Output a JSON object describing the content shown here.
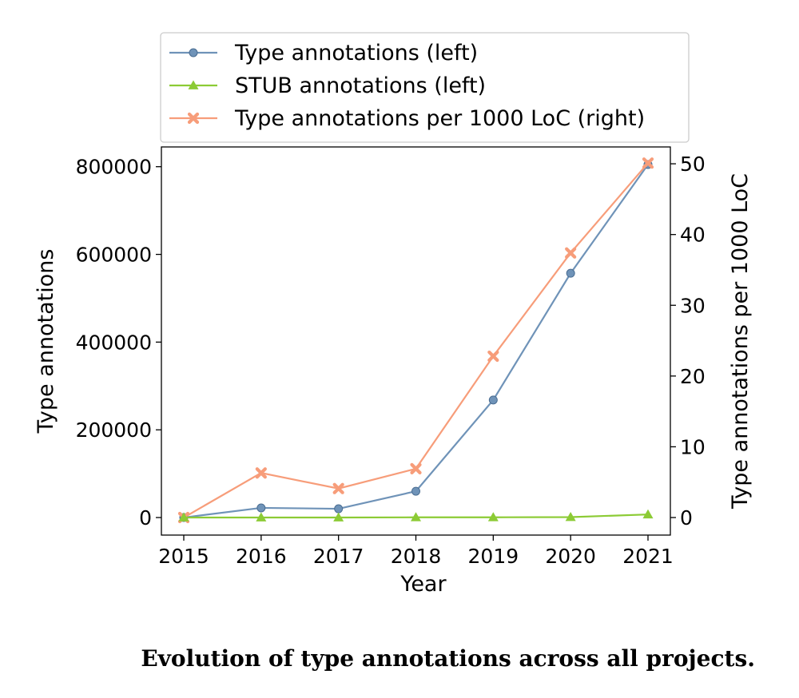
{
  "caption": "Evolution of type annotations across all projects.",
  "chart_data": {
    "type": "line",
    "x": [
      2015,
      2016,
      2017,
      2018,
      2019,
      2020,
      2021
    ],
    "xlabel": "Year",
    "ylabel_left": "Type annotations",
    "ylabel_right": "Type annotations per 1000 LoC",
    "ylim_left": [
      -40000,
      845000
    ],
    "ylim_right": [
      -2.48,
      52.38
    ],
    "yticks_left": [
      0,
      200000,
      400000,
      600000,
      800000
    ],
    "yticks_right": [
      0,
      10,
      20,
      30,
      40,
      50
    ],
    "legend_position": "top",
    "grid": false,
    "series": [
      {
        "name": "Type annotations (left)",
        "axis": "left",
        "marker": "circle",
        "color": "#6f93b8",
        "values": [
          0,
          22000,
          20000,
          60000,
          268000,
          557000,
          805000
        ]
      },
      {
        "name": "STUB annotations (left)",
        "axis": "left",
        "marker": "triangle",
        "color": "#8ccb35",
        "values": [
          0,
          0,
          0,
          500,
          500,
          1000,
          7000
        ]
      },
      {
        "name": "Type annotations per 1000 LoC (right)",
        "axis": "right",
        "marker": "x",
        "color": "#f79d7a",
        "values": [
          0,
          6.3,
          4.1,
          6.9,
          22.8,
          37.4,
          50.1
        ]
      }
    ]
  }
}
